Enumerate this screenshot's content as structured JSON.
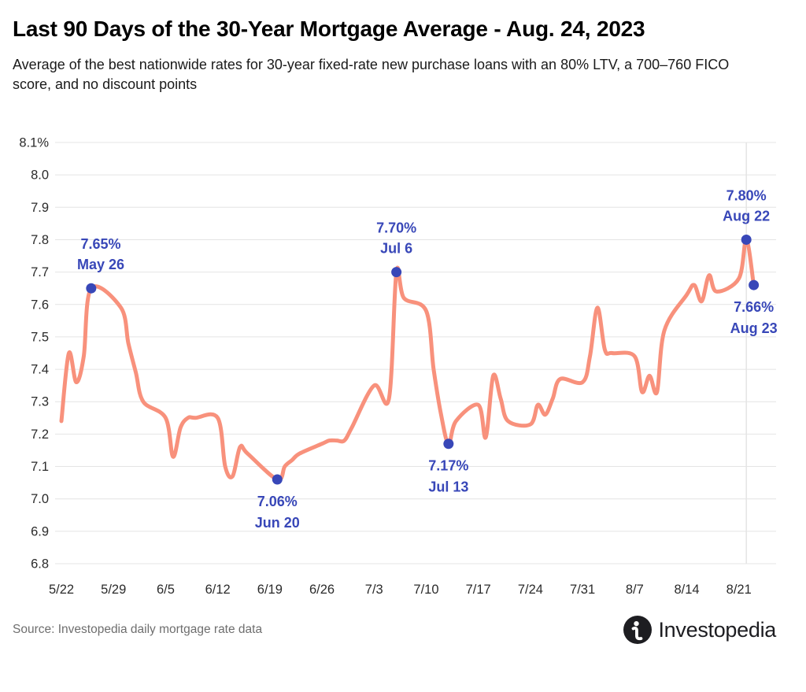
{
  "header": {
    "title": "Last 90 Days of the 30-Year Mortgage Average - Aug. 24, 2023",
    "subtitle": "Average of the best nationwide rates for 30-year fixed-rate new purchase loans with an 80% LTV, a 700–760 FICO score, and no discount points"
  },
  "footer": {
    "source": "Source: Investopedia daily mortgage rate data",
    "logo_text": "Investopedia"
  },
  "chart_data": {
    "type": "line",
    "title": "Last 90 Days of the 30-Year Mortgage Average - Aug. 24, 2023",
    "subtitle": "Average of the best nationwide rates for 30-year fixed-rate new purchase loans with an 80% LTV, a 700–760 FICO score, and no discount points",
    "ylim": [
      6.8,
      8.1
    ],
    "grid": "horizontal",
    "legend": "none",
    "line_color": "#f8917c",
    "marker_color": "#3847b8",
    "grid_color": "#e4e4e4",
    "yticks": [
      {
        "v": 8.1,
        "label": "8.1%"
      },
      {
        "v": 8.0,
        "label": "8.0"
      },
      {
        "v": 7.9,
        "label": "7.9"
      },
      {
        "v": 7.8,
        "label": "7.8"
      },
      {
        "v": 7.7,
        "label": "7.7"
      },
      {
        "v": 7.6,
        "label": "7.6"
      },
      {
        "v": 7.5,
        "label": "7.5"
      },
      {
        "v": 7.4,
        "label": "7.4"
      },
      {
        "v": 7.3,
        "label": "7.3"
      },
      {
        "v": 7.2,
        "label": "7.2"
      },
      {
        "v": 7.1,
        "label": "7.1"
      },
      {
        "v": 7.0,
        "label": "7.0"
      },
      {
        "v": 6.9,
        "label": "6.9"
      },
      {
        "v": 6.8,
        "label": "6.8"
      }
    ],
    "xticks": [
      "5/22",
      "5/29",
      "6/5",
      "6/12",
      "6/19",
      "6/26",
      "7/3",
      "7/10",
      "7/17",
      "7/24",
      "7/31",
      "8/7",
      "8/14",
      "8/21"
    ],
    "x_domain_days": [
      0,
      96
    ],
    "vline_date": "8/22",
    "series": [
      {
        "name": "30-Year Mortgage Average",
        "points": [
          [
            "5/22",
            7.24
          ],
          [
            "5/23",
            7.45
          ],
          [
            "5/24",
            7.36
          ],
          [
            "5/25",
            7.44
          ],
          [
            "5/26",
            7.65
          ],
          [
            "5/30",
            7.59
          ],
          [
            "5/31",
            7.48
          ],
          [
            "6/1",
            7.39
          ],
          [
            "6/2",
            7.3
          ],
          [
            "6/5",
            7.25
          ],
          [
            "6/6",
            7.13
          ],
          [
            "6/7",
            7.22
          ],
          [
            "6/8",
            7.25
          ],
          [
            "6/9",
            7.25
          ],
          [
            "6/12",
            7.25
          ],
          [
            "6/13",
            7.1
          ],
          [
            "6/14",
            7.07
          ],
          [
            "6/15",
            7.16
          ],
          [
            "6/16",
            7.14
          ],
          [
            "6/20",
            7.06
          ],
          [
            "6/21",
            7.1
          ],
          [
            "6/22",
            7.12
          ],
          [
            "6/23",
            7.14
          ],
          [
            "6/26",
            7.17
          ],
          [
            "6/27",
            7.18
          ],
          [
            "6/28",
            7.18
          ],
          [
            "6/29",
            7.18
          ],
          [
            "6/30",
            7.22
          ],
          [
            "7/3",
            7.35
          ],
          [
            "7/5",
            7.31
          ],
          [
            "7/6",
            7.7
          ],
          [
            "7/7",
            7.62
          ],
          [
            "7/10",
            7.58
          ],
          [
            "7/11",
            7.4
          ],
          [
            "7/12",
            7.26
          ],
          [
            "7/13",
            7.17
          ],
          [
            "7/14",
            7.24
          ],
          [
            "7/17",
            7.29
          ],
          [
            "7/18",
            7.19
          ],
          [
            "7/19",
            7.38
          ],
          [
            "7/20",
            7.31
          ],
          [
            "7/21",
            7.24
          ],
          [
            "7/24",
            7.23
          ],
          [
            "7/25",
            7.29
          ],
          [
            "7/26",
            7.26
          ],
          [
            "7/27",
            7.31
          ],
          [
            "7/28",
            7.37
          ],
          [
            "7/31",
            7.36
          ],
          [
            "8/1",
            7.44
          ],
          [
            "8/2",
            7.59
          ],
          [
            "8/3",
            7.46
          ],
          [
            "8/4",
            7.45
          ],
          [
            "8/7",
            7.44
          ],
          [
            "8/8",
            7.33
          ],
          [
            "8/9",
            7.38
          ],
          [
            "8/10",
            7.33
          ],
          [
            "8/11",
            7.52
          ],
          [
            "8/14",
            7.63
          ],
          [
            "8/15",
            7.66
          ],
          [
            "8/16",
            7.61
          ],
          [
            "8/17",
            7.69
          ],
          [
            "8/18",
            7.64
          ],
          [
            "8/21",
            7.68
          ],
          [
            "8/22",
            7.8
          ],
          [
            "8/23",
            7.66
          ]
        ]
      }
    ],
    "annotations": [
      {
        "date": "5/26",
        "value": 7.65,
        "label_value": "7.65%",
        "label_date": "May 26",
        "position": "above"
      },
      {
        "date": "6/20",
        "value": 7.06,
        "label_value": "7.06%",
        "label_date": "Jun 20",
        "position": "below"
      },
      {
        "date": "7/6",
        "value": 7.7,
        "label_value": "7.70%",
        "label_date": "Jul 6",
        "position": "above"
      },
      {
        "date": "7/13",
        "value": 7.17,
        "label_value": "7.17%",
        "label_date": "Jul 13",
        "position": "below"
      },
      {
        "date": "8/22",
        "value": 7.8,
        "label_value": "7.80%",
        "label_date": "Aug 22",
        "position": "above"
      },
      {
        "date": "8/23",
        "value": 7.66,
        "label_value": "7.66%",
        "label_date": "Aug 23",
        "position": "below"
      }
    ]
  }
}
